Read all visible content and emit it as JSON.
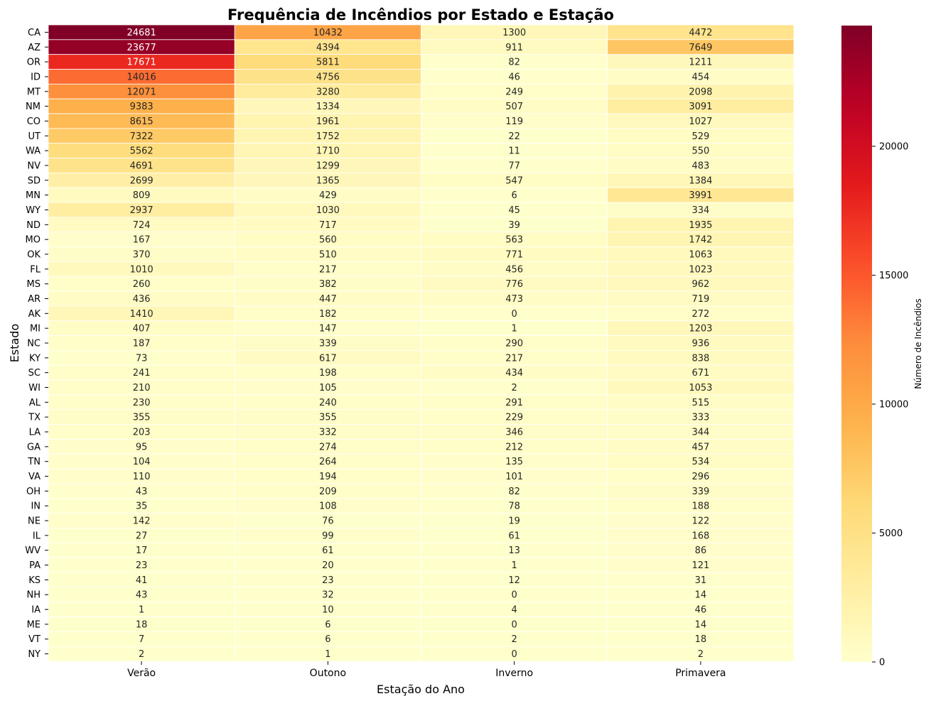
{
  "chart_data": {
    "type": "heatmap",
    "title": "Frequência de Incêndios por Estado e Estação",
    "xlabel": "Estação do Ano",
    "ylabel": "Estado",
    "colorbar_label": "Número de Incêndios",
    "colormap": "YlOrRd",
    "color_range": [
      0,
      24681
    ],
    "colorbar_ticks": [
      0,
      5000,
      10000,
      15000,
      20000
    ],
    "colorbar_tick_labels": [
      "0",
      "5000",
      "10000",
      "15000",
      "20000"
    ],
    "columns": [
      "Verão",
      "Outono",
      "Inverno",
      "Primavera"
    ],
    "rows": [
      "CA",
      "AZ",
      "OR",
      "ID",
      "MT",
      "NM",
      "CO",
      "UT",
      "WA",
      "NV",
      "SD",
      "MN",
      "WY",
      "ND",
      "MO",
      "OK",
      "FL",
      "MS",
      "AR",
      "AK",
      "MI",
      "NC",
      "KY",
      "SC",
      "WI",
      "AL",
      "TX",
      "LA",
      "GA",
      "TN",
      "VA",
      "OH",
      "IN",
      "NE",
      "IL",
      "WV",
      "PA",
      "KS",
      "NH",
      "IA",
      "ME",
      "VT",
      "NY"
    ],
    "values": [
      [
        24681,
        10432,
        1300,
        4472
      ],
      [
        23677,
        4394,
        911,
        7649
      ],
      [
        17671,
        5811,
        82,
        1211
      ],
      [
        14016,
        4756,
        46,
        454
      ],
      [
        12071,
        3280,
        249,
        2098
      ],
      [
        9383,
        1334,
        507,
        3091
      ],
      [
        8615,
        1961,
        119,
        1027
      ],
      [
        7322,
        1752,
        22,
        529
      ],
      [
        5562,
        1710,
        11,
        550
      ],
      [
        4691,
        1299,
        77,
        483
      ],
      [
        2699,
        1365,
        547,
        1384
      ],
      [
        809,
        429,
        6,
        3991
      ],
      [
        2937,
        1030,
        45,
        334
      ],
      [
        724,
        717,
        39,
        1935
      ],
      [
        167,
        560,
        563,
        1742
      ],
      [
        370,
        510,
        771,
        1063
      ],
      [
        1010,
        217,
        456,
        1023
      ],
      [
        260,
        382,
        776,
        962
      ],
      [
        436,
        447,
        473,
        719
      ],
      [
        1410,
        182,
        0,
        272
      ],
      [
        407,
        147,
        1,
        1203
      ],
      [
        187,
        339,
        290,
        936
      ],
      [
        73,
        617,
        217,
        838
      ],
      [
        241,
        198,
        434,
        671
      ],
      [
        210,
        105,
        2,
        1053
      ],
      [
        230,
        240,
        291,
        515
      ],
      [
        355,
        355,
        229,
        333
      ],
      [
        203,
        332,
        346,
        344
      ],
      [
        95,
        274,
        212,
        457
      ],
      [
        104,
        264,
        135,
        534
      ],
      [
        110,
        194,
        101,
        296
      ],
      [
        43,
        209,
        82,
        339
      ],
      [
        35,
        108,
        78,
        188
      ],
      [
        142,
        76,
        19,
        122
      ],
      [
        27,
        99,
        61,
        168
      ],
      [
        17,
        61,
        13,
        86
      ],
      [
        23,
        20,
        1,
        121
      ],
      [
        41,
        23,
        12,
        31
      ],
      [
        43,
        32,
        0,
        14
      ],
      [
        1,
        10,
        4,
        46
      ],
      [
        18,
        6,
        0,
        14
      ],
      [
        7,
        6,
        2,
        18
      ],
      [
        2,
        1,
        0,
        2
      ]
    ]
  }
}
